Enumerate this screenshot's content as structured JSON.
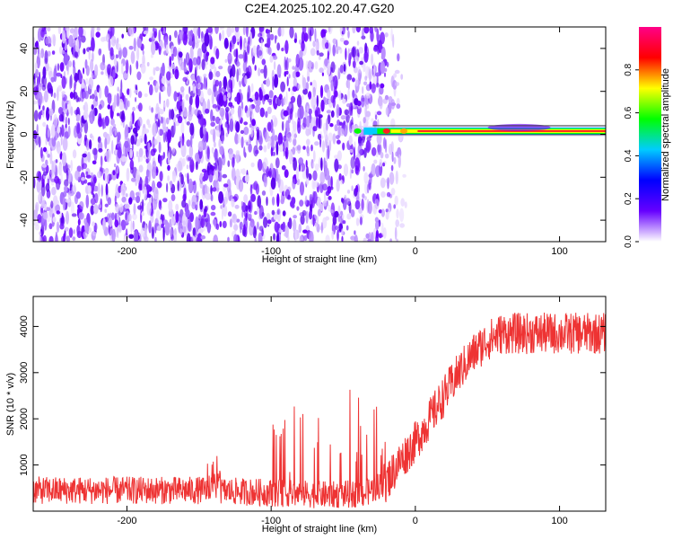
{
  "title": "C2E4.2025.102.20.47.G20",
  "chart_data": [
    {
      "type": "heatmap",
      "xlabel": "Height of straight line (km)",
      "ylabel": "Frequency (Hz)",
      "xlim": [
        -265,
        132
      ],
      "ylim": [
        -50,
        50
      ],
      "xticks": [
        -200,
        -100,
        0,
        100
      ],
      "yticks": [
        -40,
        -20,
        0,
        20,
        40
      ],
      "colorbar": {
        "label": "Normalized spectral amplitude",
        "range": [
          0,
          1
        ],
        "ticks": [
          "0.0",
          "0.2",
          "0.4",
          "0.6",
          "0.8"
        ],
        "colors": [
          "#ffffff",
          "#6600ff",
          "#0000ff",
          "#00ccff",
          "#00ff00",
          "#ffff00",
          "#ff0000",
          "#ff0088"
        ]
      },
      "description_points": {
        "noise_region_x": [
          -265,
          -25
        ],
        "signal_line_freq_hz": 1.5,
        "signal_start_x": -42
      }
    },
    {
      "type": "line",
      "xlabel": "Height of straight line (km)",
      "ylabel": "SNR (10 * v/v)",
      "xlim": [
        -265,
        132
      ],
      "ylim": [
        0,
        4650
      ],
      "xticks": [
        -200,
        -100,
        0,
        100
      ],
      "yticks": [
        1000,
        2000,
        3000,
        4000
      ],
      "series_color": "#ee3333",
      "profile": {
        "x": [
          -265,
          -150,
          -100,
          -60,
          -35,
          -20,
          -10,
          0,
          10,
          20,
          30,
          40,
          50,
          60,
          80,
          100,
          132
        ],
        "y": [
          450,
          450,
          400,
          350,
          380,
          650,
          1100,
          1500,
          2000,
          2500,
          3000,
          3400,
          3700,
          3850,
          3850,
          3850,
          3850
        ]
      }
    }
  ]
}
